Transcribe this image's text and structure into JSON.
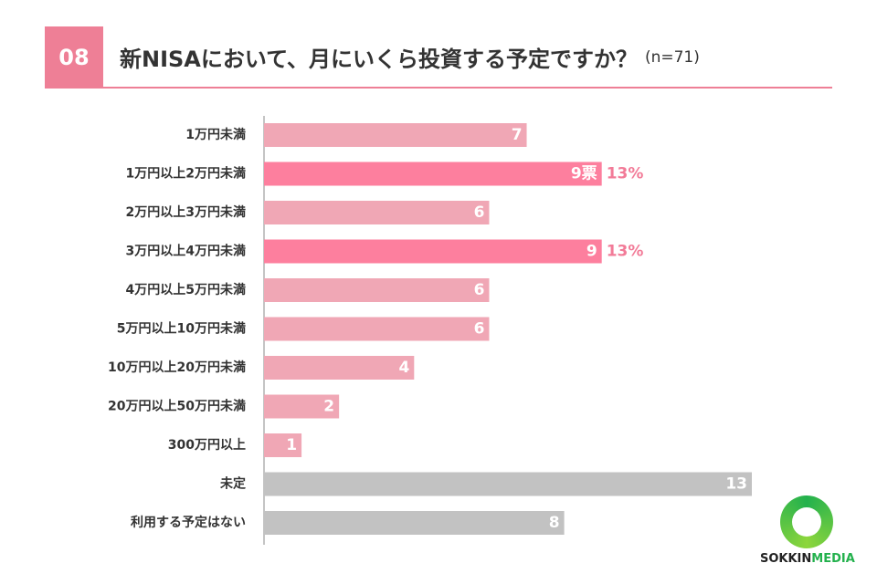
{
  "header": {
    "number": "08",
    "title": "新NISAにおいて、月にいくら投資する予定ですか？",
    "sample": "(n=71)"
  },
  "colors": {
    "accent": "#ee7f96",
    "bar_normal": "#f0a7b5",
    "bar_highlight": "#fd7f9e",
    "bar_gray": "#c2c2c2",
    "percent_text": "#f27b98",
    "logo_green": "#23b14d"
  },
  "chart_data": {
    "type": "bar",
    "orientation": "horizontal",
    "categories": [
      "1万円未満",
      "1万円以上2万円未満",
      "2万円以上3万円未満",
      "3万円以上4万円未満",
      "4万円以上5万円未満",
      "5万円以上10万円未満",
      "10万円以上20万円未満",
      "20万円以上50万円未満",
      "300万円以上",
      "未定",
      "利用する予定はない"
    ],
    "values": [
      7,
      9,
      6,
      9,
      6,
      6,
      4,
      2,
      1,
      13,
      8
    ],
    "value_labels": [
      "7",
      "9票",
      "6",
      "9",
      "6",
      "6",
      "4",
      "2",
      "1",
      "13",
      "8"
    ],
    "bar_styles": [
      "normal",
      "highlight",
      "normal",
      "highlight",
      "normal",
      "normal",
      "normal",
      "normal",
      "normal",
      "gray",
      "gray"
    ],
    "percent_labels": [
      "",
      "13%",
      "",
      "13%",
      "",
      "",
      "",
      "",
      "",
      "",
      ""
    ],
    "xlim": [
      0,
      13
    ]
  },
  "logo": {
    "part1": "SOKKIN",
    "part2": "MEDIA"
  }
}
